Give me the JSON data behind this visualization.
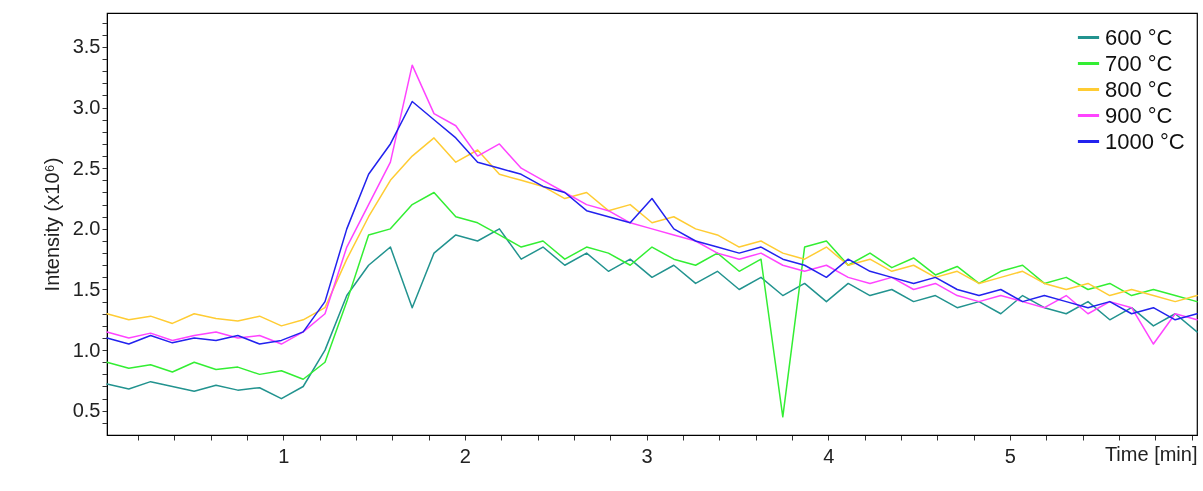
{
  "chart_data": {
    "type": "line",
    "xlabel": "Time [min]",
    "ylabel": "Intensity (x10⁶)",
    "x": [
      0.03,
      0.15,
      0.27,
      0.39,
      0.51,
      0.63,
      0.75,
      0.87,
      0.99,
      1.11,
      1.23,
      1.35,
      1.47,
      1.59,
      1.71,
      1.83,
      1.95,
      2.07,
      2.19,
      2.31,
      2.43,
      2.55,
      2.67,
      2.79,
      2.91,
      3.03,
      3.15,
      3.27,
      3.39,
      3.51,
      3.63,
      3.75,
      3.87,
      3.99,
      4.11,
      4.23,
      4.35,
      4.47,
      4.59,
      4.71,
      4.83,
      4.95,
      5.07,
      5.19,
      5.31,
      5.43,
      5.55,
      5.67,
      5.79,
      5.91,
      6.03
    ],
    "series": [
      {
        "name": "600 °C",
        "color": "#22938f",
        "values": [
          0.72,
          0.68,
          0.74,
          0.7,
          0.66,
          0.71,
          0.67,
          0.69,
          0.6,
          0.7,
          1.0,
          1.45,
          1.7,
          1.85,
          1.35,
          1.8,
          1.95,
          1.9,
          2.0,
          1.75,
          1.85,
          1.7,
          1.8,
          1.65,
          1.75,
          1.6,
          1.7,
          1.55,
          1.65,
          1.5,
          1.6,
          1.45,
          1.55,
          1.4,
          1.55,
          1.45,
          1.5,
          1.4,
          1.45,
          1.35,
          1.4,
          1.3,
          1.45,
          1.35,
          1.3,
          1.4,
          1.25,
          1.35,
          1.2,
          1.3,
          1.15
        ]
      },
      {
        "name": "700 °C",
        "color": "#33ee33",
        "values": [
          0.9,
          0.85,
          0.88,
          0.82,
          0.9,
          0.84,
          0.86,
          0.8,
          0.83,
          0.76,
          0.9,
          1.4,
          1.95,
          2.0,
          2.2,
          2.3,
          2.1,
          2.05,
          1.95,
          1.85,
          1.9,
          1.75,
          1.85,
          1.8,
          1.7,
          1.85,
          1.75,
          1.7,
          1.8,
          1.65,
          1.75,
          0.45,
          1.85,
          1.9,
          1.7,
          1.8,
          1.68,
          1.76,
          1.62,
          1.69,
          1.55,
          1.65,
          1.7,
          1.55,
          1.6,
          1.5,
          1.55,
          1.45,
          1.5,
          1.45,
          1.4
        ]
      },
      {
        "name": "800 °C",
        "color": "#ffcc33",
        "values": [
          1.3,
          1.25,
          1.28,
          1.22,
          1.3,
          1.26,
          1.24,
          1.28,
          1.2,
          1.25,
          1.35,
          1.75,
          2.1,
          2.4,
          2.6,
          2.75,
          2.55,
          2.65,
          2.45,
          2.4,
          2.35,
          2.25,
          2.3,
          2.15,
          2.2,
          2.05,
          2.1,
          2.0,
          1.95,
          1.85,
          1.9,
          1.8,
          1.75,
          1.85,
          1.7,
          1.75,
          1.65,
          1.7,
          1.6,
          1.65,
          1.55,
          1.6,
          1.65,
          1.55,
          1.5,
          1.55,
          1.45,
          1.5,
          1.45,
          1.4,
          1.45
        ]
      },
      {
        "name": "900 °C",
        "color": "#ff44ff",
        "values": [
          1.15,
          1.1,
          1.14,
          1.08,
          1.12,
          1.15,
          1.1,
          1.12,
          1.05,
          1.15,
          1.3,
          1.85,
          2.2,
          2.55,
          3.35,
          2.95,
          2.85,
          2.6,
          2.7,
          2.5,
          2.4,
          2.3,
          2.2,
          2.15,
          2.05,
          2.0,
          1.95,
          1.9,
          1.8,
          1.75,
          1.8,
          1.7,
          1.65,
          1.7,
          1.6,
          1.55,
          1.6,
          1.5,
          1.55,
          1.45,
          1.4,
          1.45,
          1.4,
          1.35,
          1.45,
          1.3,
          1.4,
          1.35,
          1.05,
          1.3,
          1.25
        ]
      },
      {
        "name": "1000 °C",
        "color": "#2222ee",
        "values": [
          1.1,
          1.05,
          1.12,
          1.06,
          1.1,
          1.08,
          1.12,
          1.05,
          1.08,
          1.15,
          1.4,
          2.0,
          2.45,
          2.7,
          3.05,
          2.9,
          2.75,
          2.55,
          2.5,
          2.45,
          2.35,
          2.3,
          2.15,
          2.1,
          2.05,
          2.25,
          2.0,
          1.9,
          1.85,
          1.8,
          1.85,
          1.75,
          1.7,
          1.6,
          1.75,
          1.65,
          1.6,
          1.55,
          1.6,
          1.5,
          1.45,
          1.5,
          1.4,
          1.45,
          1.4,
          1.35,
          1.4,
          1.3,
          1.35,
          1.25,
          1.3
        ]
      }
    ],
    "xlim": [
      0.03,
      6.03
    ],
    "xticks": [
      {
        "value": 0.2,
        "label": null
      },
      {
        "value": 0.4,
        "label": null
      },
      {
        "value": 0.6,
        "label": null
      },
      {
        "value": 0.8,
        "label": null
      },
      1,
      {
        "value": 1.2,
        "label": null
      },
      {
        "value": 1.4,
        "label": null
      },
      {
        "value": 1.6,
        "label": null
      },
      {
        "value": 1.8,
        "label": null
      },
      2,
      {
        "value": 2.2,
        "label": null
      },
      {
        "value": 2.4,
        "label": null
      },
      {
        "value": 2.6,
        "label": null
      },
      {
        "value": 2.8,
        "label": null
      },
      3,
      {
        "value": 3.2,
        "label": null
      },
      {
        "value": 3.4,
        "label": null
      },
      {
        "value": 3.6,
        "label": null
      },
      {
        "value": 3.8,
        "label": null
      },
      4,
      {
        "value": 4.2,
        "label": null
      },
      {
        "value": 4.4,
        "label": null
      },
      {
        "value": 4.6,
        "label": null
      },
      {
        "value": 4.8,
        "label": null
      },
      5,
      {
        "value": 5.2,
        "label": null
      },
      {
        "value": 5.4,
        "label": null
      },
      {
        "value": 5.6,
        "label": null
      },
      {
        "value": 5.8,
        "label": null
      },
      {
        "value": 6,
        "label": null
      }
    ],
    "ylim": [
      0.3,
      3.78
    ],
    "yticks": [
      {
        "value": 0.4,
        "label": null
      },
      0.5,
      {
        "value": 0.6,
        "label": null
      },
      {
        "value": 0.7,
        "label": null
      },
      {
        "value": 0.8,
        "label": null
      },
      {
        "value": 0.9,
        "label": null
      },
      {
        "value": 1,
        "label": "1.0"
      },
      {
        "value": 1.1,
        "label": null
      },
      {
        "value": 1.2,
        "label": null
      },
      {
        "value": 1.3,
        "label": null
      },
      {
        "value": 1.4,
        "label": null
      },
      1.5,
      {
        "value": 1.6,
        "label": null
      },
      {
        "value": 1.7,
        "label": null
      },
      {
        "value": 1.8,
        "label": null
      },
      {
        "value": 1.9,
        "label": null
      },
      {
        "value": 2,
        "label": "2.0"
      },
      {
        "value": 2.1,
        "label": null
      },
      {
        "value": 2.2,
        "label": null
      },
      {
        "value": 2.3,
        "label": null
      },
      {
        "value": 2.4,
        "label": null
      },
      2.5,
      {
        "value": 2.6,
        "label": null
      },
      {
        "value": 2.7,
        "label": null
      },
      {
        "value": 2.8,
        "label": null
      },
      {
        "value": 2.9,
        "label": null
      },
      {
        "value": 3,
        "label": "3.0"
      },
      {
        "value": 3.1,
        "label": null
      },
      {
        "value": 3.2,
        "label": null
      },
      {
        "value": 3.3,
        "label": null
      },
      {
        "value": 3.4,
        "label": null
      },
      3.5,
      {
        "value": 3.6,
        "label": null
      },
      {
        "value": 3.7,
        "label": null
      }
    ],
    "grid": false,
    "legend": "top right",
    "line_style": "solid",
    "marker": "none"
  }
}
